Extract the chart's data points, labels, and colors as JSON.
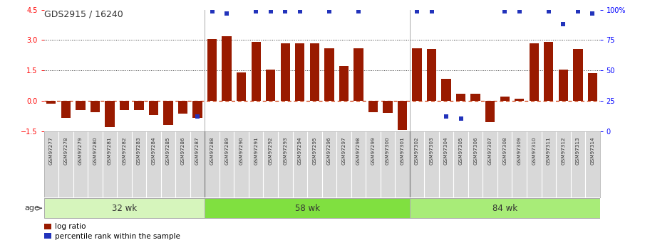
{
  "title": "GDS2915 / 16240",
  "samples": [
    "GSM97277",
    "GSM97278",
    "GSM97279",
    "GSM97280",
    "GSM97281",
    "GSM97282",
    "GSM97283",
    "GSM97284",
    "GSM97285",
    "GSM97286",
    "GSM97287",
    "GSM97288",
    "GSM97289",
    "GSM97290",
    "GSM97291",
    "GSM97292",
    "GSM97293",
    "GSM97294",
    "GSM97295",
    "GSM97296",
    "GSM97297",
    "GSM97298",
    "GSM97299",
    "GSM97300",
    "GSM97301",
    "GSM97302",
    "GSM97303",
    "GSM97304",
    "GSM97305",
    "GSM97306",
    "GSM97307",
    "GSM97308",
    "GSM97309",
    "GSM97310",
    "GSM97311",
    "GSM97312",
    "GSM97313",
    "GSM97314"
  ],
  "log_ratio": [
    -0.15,
    -0.85,
    -0.45,
    -0.55,
    -1.3,
    -0.45,
    -0.45,
    -0.7,
    -1.2,
    -0.65,
    -0.85,
    3.05,
    3.2,
    1.4,
    2.9,
    1.55,
    2.85,
    2.85,
    2.85,
    2.6,
    1.7,
    2.6,
    -0.55,
    -0.6,
    -1.45,
    2.6,
    2.55,
    1.1,
    0.35,
    0.35,
    -1.05,
    0.2,
    0.1,
    2.85,
    2.9,
    1.55,
    2.55,
    1.35
  ],
  "percentile_pct": [
    null,
    null,
    null,
    null,
    null,
    null,
    null,
    null,
    null,
    null,
    12,
    99,
    97,
    null,
    99,
    99,
    99,
    99,
    null,
    99,
    null,
    99,
    null,
    null,
    null,
    99,
    99,
    12,
    10,
    null,
    null,
    99,
    99,
    null,
    99,
    88,
    99,
    97
  ],
  "groups": [
    {
      "label": "32 wk",
      "start": 0,
      "end": 10
    },
    {
      "label": "58 wk",
      "start": 11,
      "end": 24
    },
    {
      "label": "84 wk",
      "start": 25,
      "end": 37
    }
  ],
  "group_colors": [
    "#d6f5bc",
    "#80e040",
    "#a8ec78"
  ],
  "ylim_left": [
    -1.5,
    4.5
  ],
  "ylim_right": [
    0,
    100
  ],
  "yticks_left": [
    -1.5,
    0.0,
    1.5,
    3.0,
    4.5
  ],
  "yticks_right": [
    0,
    25,
    50,
    75,
    100
  ],
  "bar_color": "#991a00",
  "blue_color": "#2233bb",
  "zero_line_color": "#cc3300",
  "dotted_line_color": "#333333",
  "bg_color": "#ffffff",
  "xtick_bg": "#d8d8d8",
  "legend_log_ratio_label": "log ratio",
  "legend_percentile_label": "percentile rank within the sample",
  "age_label": "age"
}
